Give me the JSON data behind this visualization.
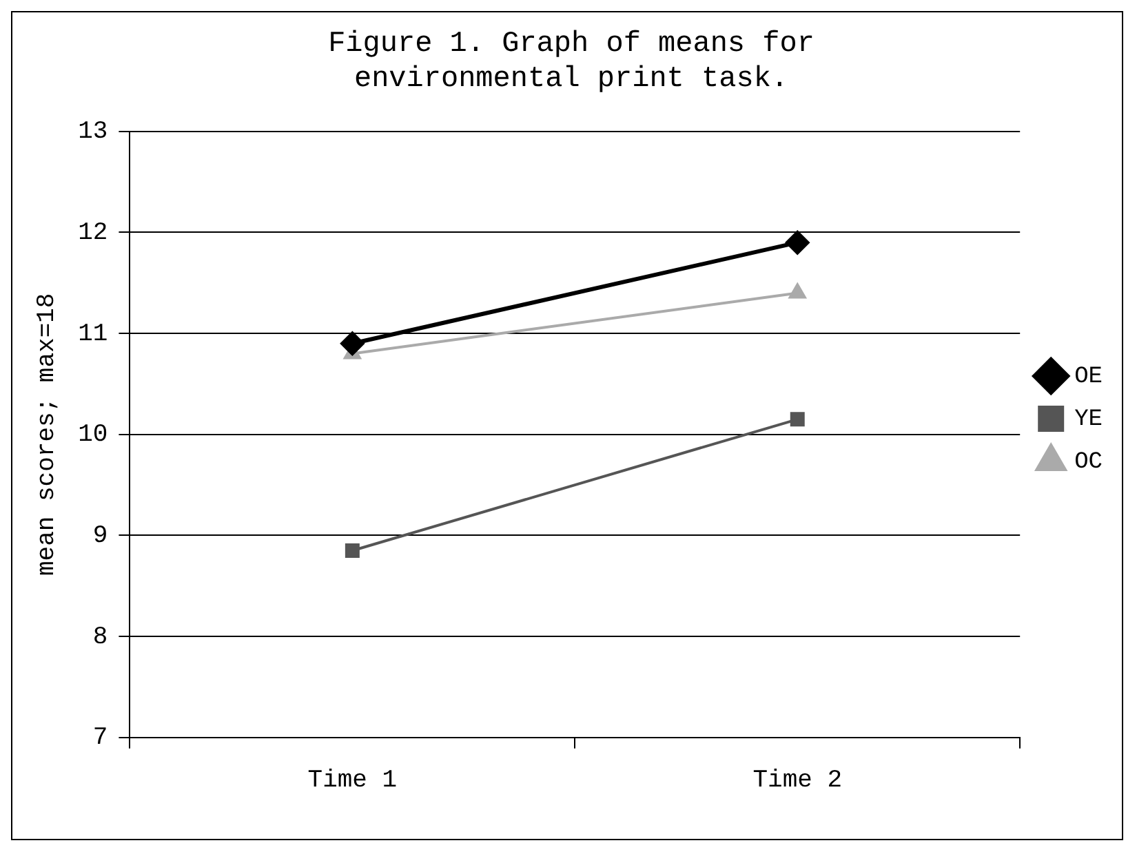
{
  "chart_data": {
    "type": "line",
    "title": "Figure 1. Graph of means for environmental print task.",
    "ylabel": "mean scores; max=18",
    "categories": [
      "Time 1",
      "Time 2"
    ],
    "series": [
      {
        "name": "OE",
        "color": "#000000",
        "marker": "diamond",
        "values": [
          10.9,
          11.9
        ]
      },
      {
        "name": "YE",
        "color": "#555555",
        "marker": "square",
        "values": [
          8.85,
          10.15
        ]
      },
      {
        "name": "OC",
        "color": "#aaaaaa",
        "marker": "triangle",
        "values": [
          10.8,
          11.4
        ]
      }
    ],
    "ylim": [
      7,
      13
    ],
    "yticks": [
      7,
      8,
      9,
      10,
      11,
      12,
      13
    ],
    "grid": "y",
    "legend": "right"
  }
}
